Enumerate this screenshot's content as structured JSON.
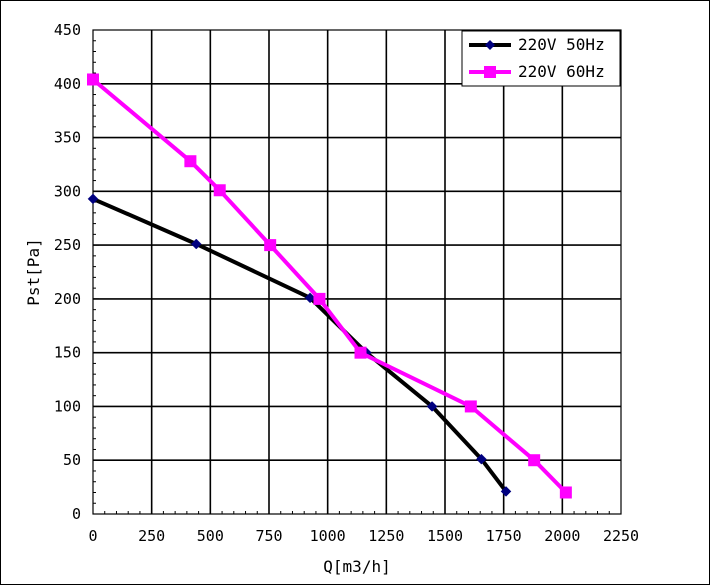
{
  "chart_data": {
    "type": "line",
    "title": "",
    "xlabel": "Q[m3/h]",
    "ylabel": "Pst[Pa]",
    "xlim": [
      0,
      2250
    ],
    "ylim": [
      0,
      450
    ],
    "x_ticks": [
      0,
      250,
      500,
      750,
      1000,
      1250,
      1500,
      1750,
      2000,
      2250
    ],
    "y_ticks": [
      0,
      50,
      100,
      150,
      200,
      250,
      300,
      350,
      400,
      450
    ],
    "x_tick_labels": [
      "0",
      "250",
      "500",
      "750",
      "1000",
      "1250",
      "1500",
      "1750",
      "2000",
      "2250"
    ],
    "y_tick_labels": [
      "0",
      "50",
      "100",
      "150",
      "200",
      "250",
      "300",
      "350",
      "400",
      "450"
    ],
    "grid": true,
    "legend_position": "top-right",
    "series": [
      {
        "name": "220V 50Hz",
        "color": "#000000",
        "marker_color": "#00007f",
        "marker": "diamond",
        "x": [
          0,
          440,
          925,
          1165,
          1445,
          1655,
          1760
        ],
        "y": [
          293,
          251,
          201,
          150,
          100,
          51,
          21
        ]
      },
      {
        "name": "220V 60Hz",
        "color": "#ff00ff",
        "marker_color": "#ff00ff",
        "marker": "square",
        "x": [
          0,
          415,
          540,
          755,
          965,
          1140,
          1610,
          1880,
          2015
        ],
        "y": [
          404,
          328,
          301,
          250,
          200,
          150,
          100,
          50,
          20
        ]
      }
    ]
  }
}
